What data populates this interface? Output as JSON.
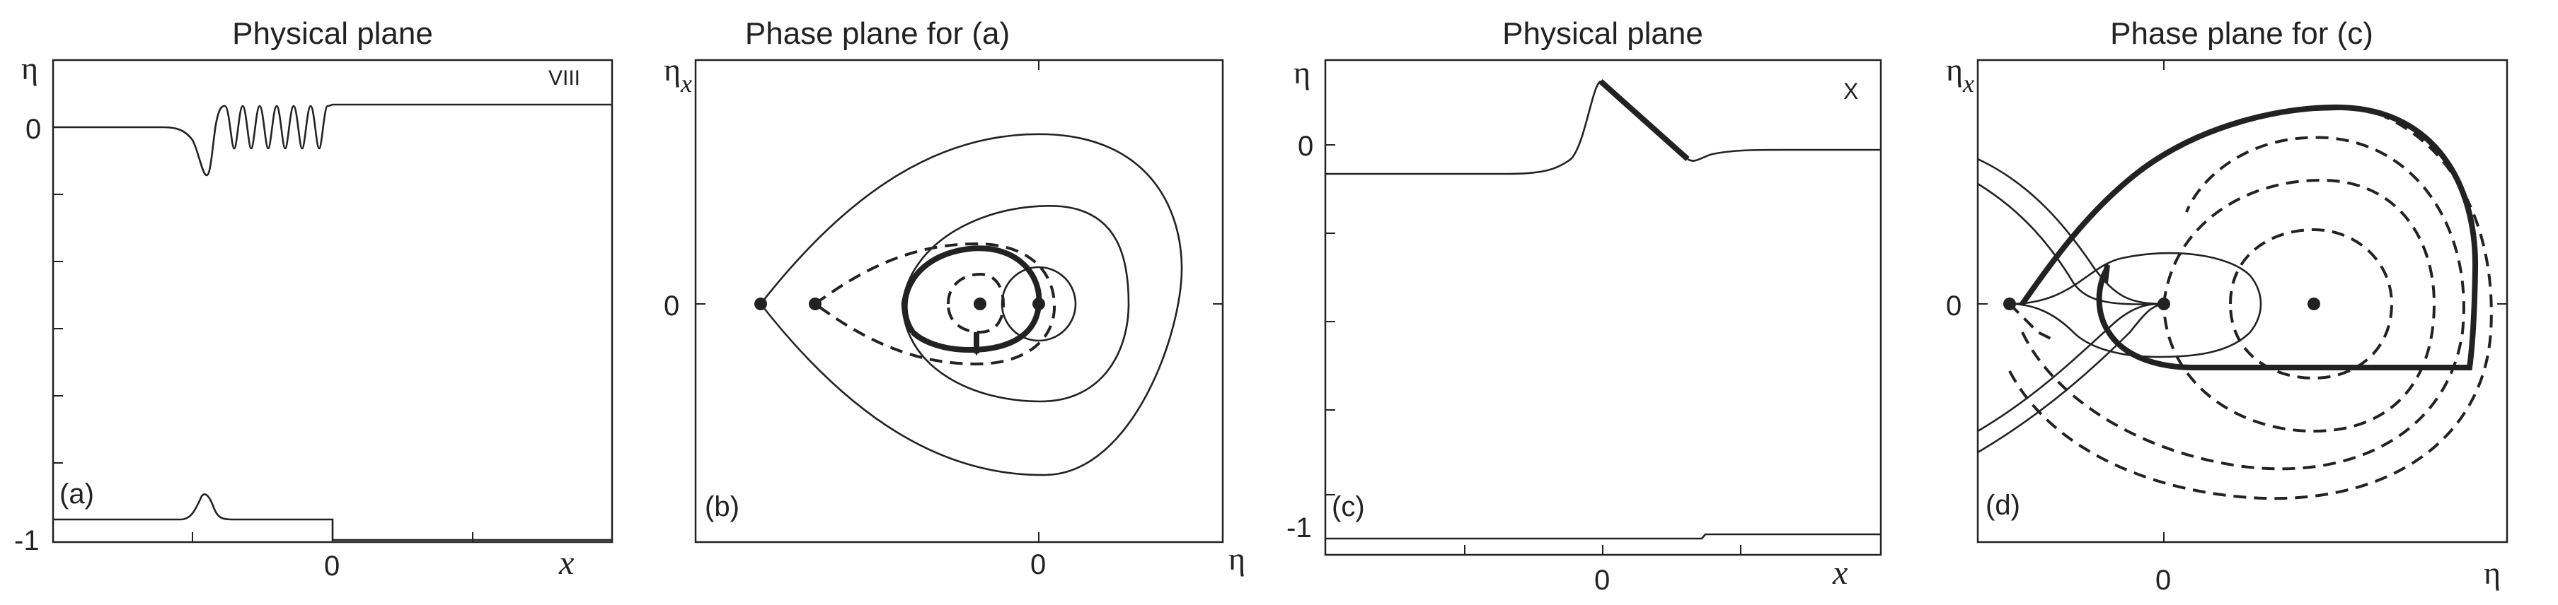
{
  "panels": [
    {
      "title": "Physical plane",
      "tag": "(a)",
      "corner_label": "VIII",
      "y_symbol": "η",
      "x_symbol": "x",
      "y_ticks": [
        "0",
        "-1"
      ],
      "x_ticks": [
        "0"
      ]
    },
    {
      "title": "Phase plane for (a)",
      "tag": "(b)",
      "y_symbol": "η",
      "y_subscript": "x",
      "x_symbol": "η",
      "y_ticks": [
        "0"
      ],
      "x_ticks": [
        "0"
      ]
    },
    {
      "title": "Physical plane",
      "tag": "(c)",
      "corner_label": "X",
      "y_symbol": "η",
      "x_symbol": "x",
      "y_ticks": [
        "0",
        "-1"
      ],
      "x_ticks": [
        "0"
      ]
    },
    {
      "title": "Phase plane for (c)",
      "tag": "(d)",
      "y_symbol": "η",
      "y_subscript": "x",
      "x_symbol": "η",
      "y_ticks": [
        "0"
      ],
      "x_ticks": [
        "0"
      ]
    }
  ]
}
